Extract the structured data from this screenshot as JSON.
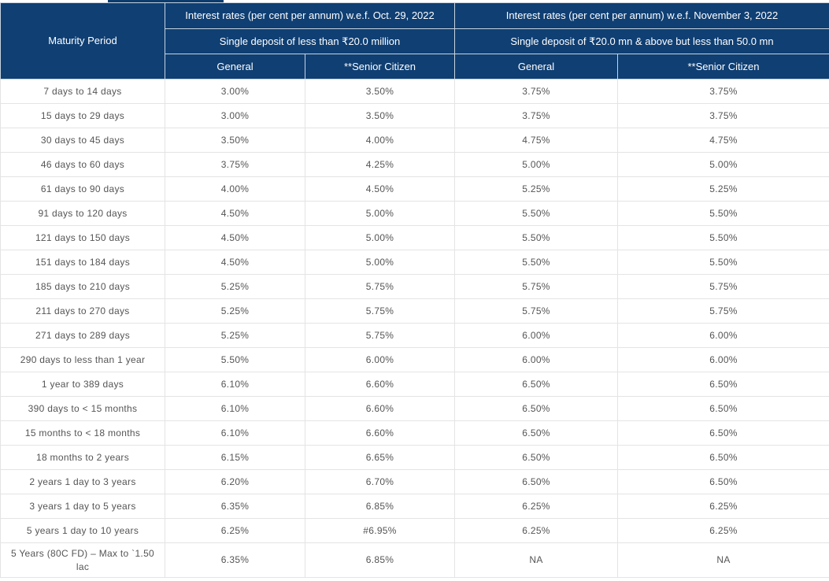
{
  "header": {
    "maturity_label": "Maturity Period",
    "period1_title": "Interest rates (per cent per annum) w.e.f. Oct. 29, 2022",
    "period2_title": "Interest rates (per cent per annum) w.e.f. November 3, 2022",
    "deposit1_label": "Single deposit of less than ₹20.0 million",
    "deposit2_label": "Single deposit of ₹20.0 mn & above but less than 50.0 mn",
    "general_label": "General",
    "senior_label": "**Senior Citizen"
  },
  "rows": [
    {
      "period": "7 days to 14 days",
      "g1": "3.00%",
      "s1": "3.50%",
      "g2": "3.75%",
      "s2": "3.75%"
    },
    {
      "period": "15 days to 29 days",
      "g1": "3.00%",
      "s1": "3.50%",
      "g2": "3.75%",
      "s2": "3.75%"
    },
    {
      "period": "30 days to 45 days",
      "g1": "3.50%",
      "s1": "4.00%",
      "g2": "4.75%",
      "s2": "4.75%"
    },
    {
      "period": "46 days to 60 days",
      "g1": "3.75%",
      "s1": "4.25%",
      "g2": "5.00%",
      "s2": "5.00%"
    },
    {
      "period": "61 days to 90 days",
      "g1": "4.00%",
      "s1": "4.50%",
      "g2": "5.25%",
      "s2": "5.25%"
    },
    {
      "period": "91 days to 120 days",
      "g1": "4.50%",
      "s1": "5.00%",
      "g2": "5.50%",
      "s2": "5.50%"
    },
    {
      "period": "121 days to 150 days",
      "g1": "4.50%",
      "s1": "5.00%",
      "g2": "5.50%",
      "s2": "5.50%"
    },
    {
      "period": "151 days to 184 days",
      "g1": "4.50%",
      "s1": "5.00%",
      "g2": "5.50%",
      "s2": "5.50%"
    },
    {
      "period": "185 days to 210 days",
      "g1": "5.25%",
      "s1": "5.75%",
      "g2": "5.75%",
      "s2": "5.75%"
    },
    {
      "period": "211 days to 270 days",
      "g1": "5.25%",
      "s1": "5.75%",
      "g2": "5.75%",
      "s2": "5.75%"
    },
    {
      "period": "271 days to 289 days",
      "g1": "5.25%",
      "s1": "5.75%",
      "g2": "6.00%",
      "s2": "6.00%"
    },
    {
      "period": "290 days to less than 1 year",
      "g1": "5.50%",
      "s1": "6.00%",
      "g2": "6.00%",
      "s2": "6.00%"
    },
    {
      "period": "1 year to 389 days",
      "g1": "6.10%",
      "s1": "6.60%",
      "g2": "6.50%",
      "s2": "6.50%"
    },
    {
      "period": "390 days to < 15 months",
      "g1": "6.10%",
      "s1": "6.60%",
      "g2": "6.50%",
      "s2": "6.50%"
    },
    {
      "period": "15 months to < 18 months",
      "g1": "6.10%",
      "s1": "6.60%",
      "g2": "6.50%",
      "s2": "6.50%"
    },
    {
      "period": "18 months to 2 years",
      "g1": "6.15%",
      "s1": "6.65%",
      "g2": "6.50%",
      "s2": "6.50%"
    },
    {
      "period": "2 years 1 day to 3 years",
      "g1": "6.20%",
      "s1": "6.70%",
      "g2": "6.50%",
      "s2": "6.50%"
    },
    {
      "period": "3 years 1 day to 5 years",
      "g1": "6.35%",
      "s1": "6.85%",
      "g2": "6.25%",
      "s2": "6.25%"
    },
    {
      "period": "5 years 1 day to 10 years",
      "g1": "6.25%",
      "s1": "#6.95%",
      "g2": "6.25%",
      "s2": "6.25%"
    },
    {
      "period": "5 Years (80C FD) – Max to `1.50 lac",
      "g1": "6.35%",
      "s1": "6.85%",
      "g2": "NA",
      "s2": "NA"
    }
  ]
}
